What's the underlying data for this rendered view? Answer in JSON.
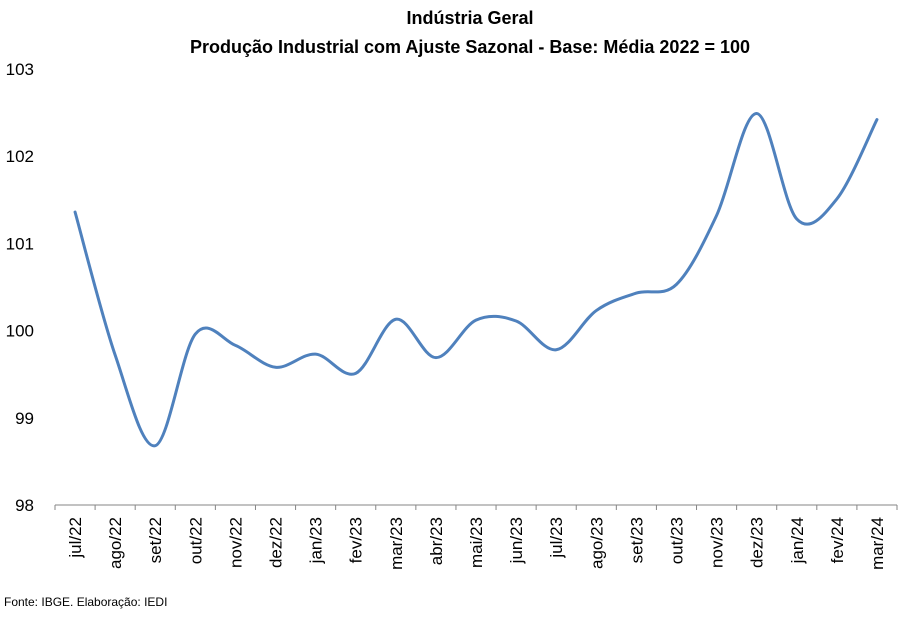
{
  "chart_data": {
    "type": "line",
    "title": "Indústria Geral",
    "subtitle": "Produção Industrial com Ajuste Sazonal - Base: Média 2022 = 100",
    "xlabel": "",
    "ylabel": "",
    "ylim": [
      98,
      103
    ],
    "y_ticks": [
      "98",
      "99",
      "100",
      "101",
      "102",
      "103"
    ],
    "grid": false,
    "legend": "none",
    "categories": [
      "jul/22",
      "ago/22",
      "set/22",
      "out/22",
      "nov/22",
      "dez/22",
      "jan/23",
      "fev/23",
      "mar/23",
      "abr/23",
      "mai/23",
      "jun/23",
      "jul/23",
      "ago/23",
      "set/23",
      "out/23",
      "nov/23",
      "dez/23",
      "jan/24",
      "fev/24",
      "mar/24"
    ],
    "series": [
      {
        "color": "#4f81bd",
        "values": [
          101.36,
          99.72,
          98.68,
          99.96,
          99.83,
          99.58,
          99.73,
          99.51,
          100.13,
          99.69,
          100.12,
          100.11,
          99.78,
          100.23,
          100.43,
          100.53,
          101.32,
          102.49,
          101.28,
          101.51,
          102.42
        ]
      }
    ],
    "source_note": "Fonte: IBGE. Elaboração: IEDI"
  }
}
